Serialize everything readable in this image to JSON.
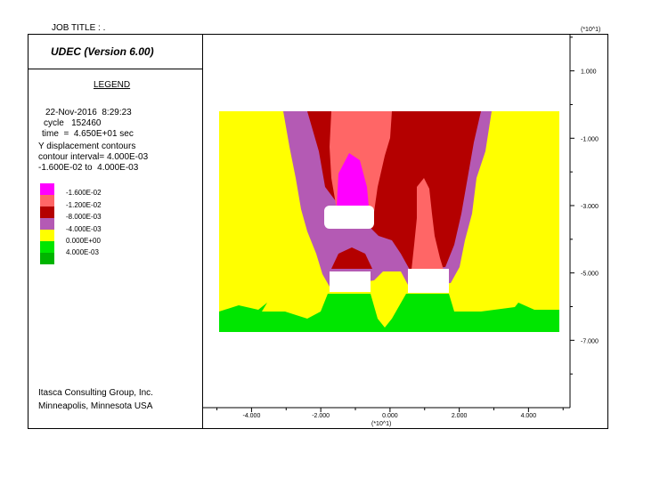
{
  "job_title": "JOB TITLE :  .",
  "app_title": "UDEC (Version 6.00)",
  "legend": {
    "title": "LEGEND",
    "date_line": "22-Nov-2016  8:29:23",
    "cycle_line": "cycle   152460",
    "time_line": "time  =  4.650E+01 sec",
    "contour_name": "Y displacement contours",
    "interval_line": "contour interval= 4.000E-03",
    "range_line": "-1.600E-02 to  4.000E-03",
    "levels": [
      {
        "label": "-1.600E-02",
        "color": "#ff00ff"
      },
      {
        "label": "-1.200E-02",
        "color": "#ff6666"
      },
      {
        "label": "-8.000E-03",
        "color": "#b40000"
      },
      {
        "label": "-4.000E-03",
        "color": "#b45ab4"
      },
      {
        "label": "0.000E+00",
        "color": "#ffff00"
      },
      {
        "label": "4.000E-03",
        "color": "#00e600"
      },
      {
        "label": "",
        "color": "#00b400"
      }
    ]
  },
  "footer": {
    "company": "Itasca Consulting Group, Inc.",
    "location": "Minneapolis, Minnesota  USA"
  },
  "chart_data": {
    "type": "heatmap",
    "title": "Y displacement contours",
    "x_ticks": [
      "-4.000",
      "-2.000",
      "0.000",
      "2.000",
      "4.000"
    ],
    "x_tick_values": [
      -4,
      -2,
      0,
      2,
      4
    ],
    "x_multiplier": "(*10^1)",
    "y_ticks": [
      "1.000",
      "-1.000",
      "-3.000",
      "-5.000",
      "-7.000"
    ],
    "y_tick_values": [
      1,
      -1,
      -3,
      -5,
      -7
    ],
    "y_multiplier": "(*10^1)",
    "xlim": [
      -5.4,
      5.2
    ],
    "ylim": [
      -9.0,
      2.1
    ],
    "contour_levels": [
      -0.016,
      -0.012,
      -0.008,
      -0.004,
      0.0,
      0.004
    ],
    "contour_colors": {
      "-1.600E-02": "#ff00ff",
      "-1.200E-02": "#ff6666",
      "-8.000E-03": "#b40000",
      "-4.000E-03": "#b45ab4",
      "0.000E+00": "#ffff00",
      "4.000E-03": "#00e600"
    }
  }
}
